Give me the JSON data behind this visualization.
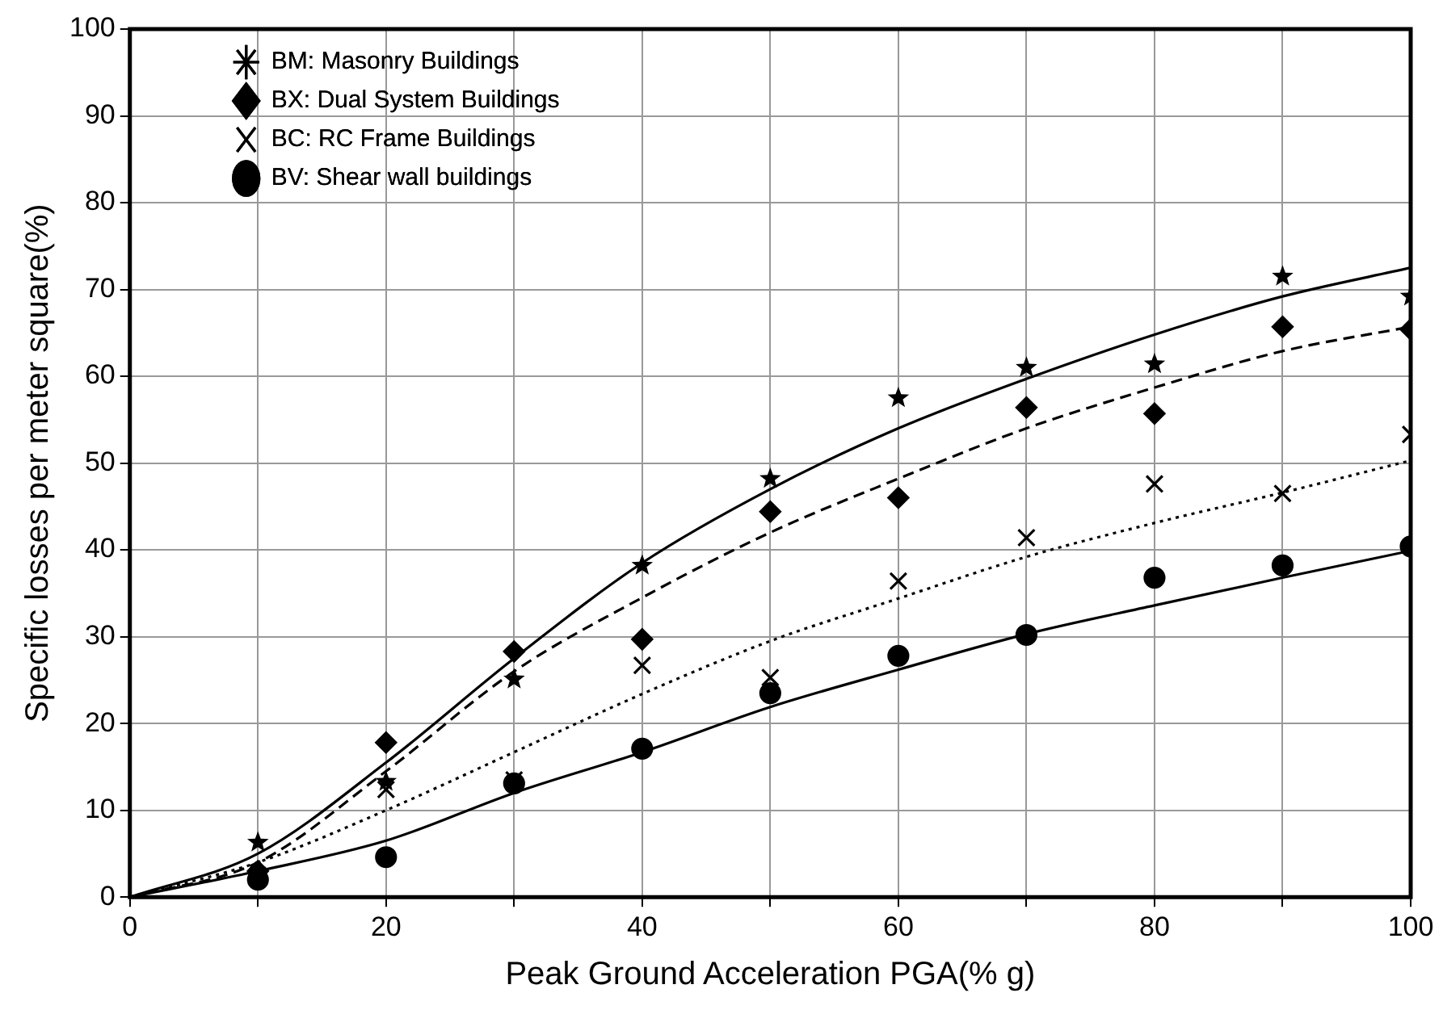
{
  "chart_data": {
    "type": "scatter",
    "xlabel": "Peak Ground Acceleration PGA(% g)",
    "ylabel": "Specific losses per meter square(%)",
    "xlim": [
      0,
      100
    ],
    "xticks": [
      0,
      {
        "value": 10,
        "label": null
      },
      20,
      {
        "value": 30,
        "label": null
      },
      40,
      {
        "value": 50,
        "label": null
      },
      60,
      {
        "value": 70,
        "label": null
      },
      80,
      {
        "value": 90,
        "label": null
      },
      100
    ],
    "ylim": [
      0,
      100
    ],
    "yticks": [
      0,
      10,
      20,
      30,
      40,
      50,
      60,
      70,
      80,
      90,
      100
    ],
    "grid": true,
    "legend": "top left",
    "series": [
      {
        "name": "BM: Masonry Buildings",
        "type": "scatter",
        "marker": "star",
        "color": "#000000",
        "x": [
          10,
          20,
          30,
          40,
          50,
          60,
          70,
          80,
          90,
          100
        ],
        "values": [
          6.3,
          13.3,
          25.1,
          38.2,
          48.2,
          57.5,
          61.0,
          61.4,
          71.5,
          69.2
        ]
      },
      {
        "name": "BX: Dual System Buildings",
        "type": "scatter",
        "marker": "diamond",
        "color": "#000000",
        "x": [
          10,
          20,
          30,
          40,
          50,
          60,
          70,
          80,
          90,
          100
        ],
        "values": [
          3,
          17.8,
          28.3,
          29.7,
          44.4,
          46.0,
          56.4,
          55.7,
          65.7,
          65.4
        ]
      },
      {
        "name": "BC: RC Frame Buildings",
        "type": "scatter",
        "marker": "cross",
        "color": "#000000",
        "x": [
          10,
          20,
          30,
          40,
          50,
          60,
          70,
          80,
          90,
          100
        ],
        "values": [
          2.5,
          12.4,
          13.5,
          26.7,
          25.3,
          36.4,
          41.4,
          47.6,
          46.5,
          53.3
        ]
      },
      {
        "name": "BV: Shear wall buildings",
        "type": "scatter",
        "marker": "circle",
        "color": "#000000",
        "x": [
          10,
          20,
          30,
          40,
          50,
          60,
          70,
          80,
          90,
          100
        ],
        "values": [
          2,
          4.6,
          13.1,
          17.1,
          23.5,
          27.8,
          30.2,
          36.8,
          38.2,
          40.4
        ]
      },
      {
        "type": "line",
        "marker": "none",
        "line_style": "solid",
        "color": "#000000",
        "x": [
          0,
          10,
          20,
          30,
          40,
          50,
          60,
          70,
          80,
          90,
          100
        ],
        "values": [
          0,
          5,
          15.5,
          27.5,
          38.5,
          47,
          54,
          59.7,
          64.8,
          69.2,
          72.5
        ]
      },
      {
        "type": "line",
        "marker": "none",
        "line_style": "dashed",
        "color": "#000000",
        "x": [
          0,
          10,
          20,
          30,
          40,
          50,
          60,
          70,
          80,
          90,
          100
        ],
        "values": [
          0,
          4,
          14.5,
          26,
          34.5,
          42,
          48.2,
          54,
          58.7,
          62.9,
          65.7
        ]
      },
      {
        "type": "line",
        "marker": "none",
        "line_style": "dotted",
        "color": "#000000",
        "x": [
          0,
          10,
          20,
          30,
          40,
          50,
          60,
          70,
          80,
          90,
          100
        ],
        "values": [
          0,
          4,
          10,
          16.7,
          23.4,
          29.5,
          34.4,
          39.2,
          43.1,
          46.6,
          50.3
        ]
      },
      {
        "type": "line",
        "marker": "none",
        "line_style": "solid",
        "color": "#000000",
        "x": [
          0,
          10,
          20,
          30,
          40,
          50,
          60,
          70,
          80,
          90,
          100
        ],
        "values": [
          0,
          3,
          6.5,
          12,
          16.7,
          21.9,
          26.2,
          30.3,
          33.6,
          36.8,
          39.9
        ]
      }
    ]
  }
}
